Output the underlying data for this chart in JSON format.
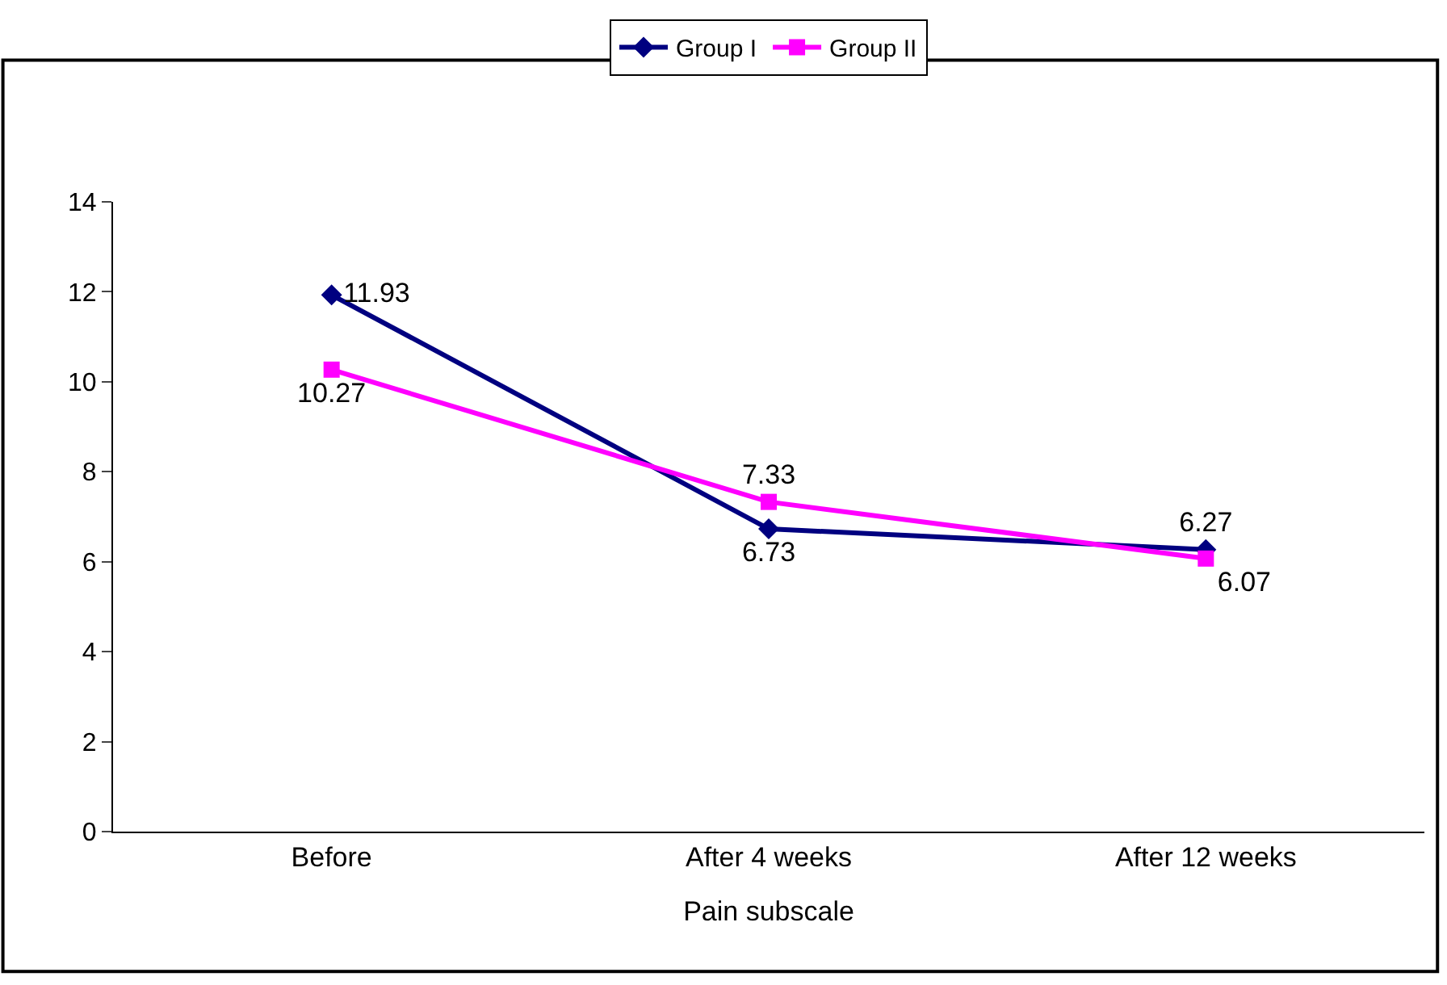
{
  "chart_data": {
    "type": "line",
    "xlabel": "Pain subscale",
    "categories": [
      "Before",
      "After 4 weeks",
      "After 12 weeks"
    ],
    "series": [
      {
        "name": "Group I",
        "color": "#000080",
        "values": [
          11.93,
          6.73,
          6.27
        ],
        "marker": "diamond"
      },
      {
        "name": "Group II",
        "color": "#ff00ff",
        "values": [
          10.27,
          7.33,
          6.07
        ],
        "marker": "square"
      }
    ],
    "ylim": [
      0,
      14
    ],
    "yticks": [
      0,
      2,
      4,
      6,
      8,
      10,
      12,
      14
    ],
    "legend": "top",
    "data_labels": true,
    "line_style": "solid"
  }
}
